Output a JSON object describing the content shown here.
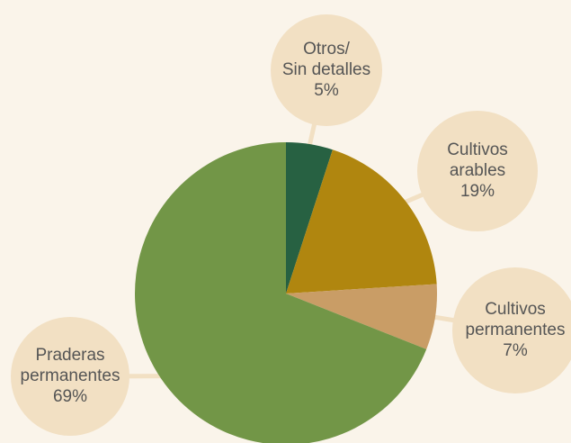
{
  "chart_data": {
    "type": "pie",
    "categories": [
      [
        "Otros/",
        "Sin detalles"
      ],
      [
        "Cultivos",
        "arables"
      ],
      [
        "Cultivos",
        "permanentes"
      ],
      [
        "Praderas",
        "permanentes"
      ]
    ],
    "values": [
      5,
      19,
      7,
      69
    ],
    "value_labels": [
      "5%",
      "19%",
      "7%",
      "69%"
    ],
    "colors": [
      "#276142",
      "#b0860f",
      "#c99d66",
      "#729647"
    ]
  }
}
